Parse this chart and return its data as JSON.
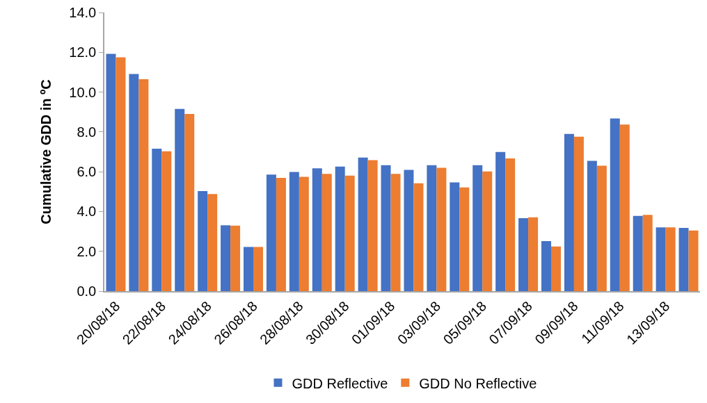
{
  "chart_data": {
    "type": "bar",
    "ylabel": "Cumulative GDD in ºC",
    "categories": [
      "20/08/18",
      null,
      "22/08/18",
      null,
      "24/08/18",
      null,
      "26/08/18",
      null,
      "28/08/18",
      null,
      "30/08/18",
      null,
      "01/09/18",
      null,
      "03/09/18",
      null,
      "05/09/18",
      null,
      "07/09/18",
      null,
      "09/09/18",
      null,
      "11/09/18",
      null,
      "13/09/18",
      null
    ],
    "series": [
      {
        "name": "GDD Reflective",
        "color": "#4472c4",
        "values": [
          11.92,
          10.91,
          7.16,
          9.16,
          5.03,
          3.31,
          2.22,
          5.86,
          5.99,
          6.17,
          6.26,
          6.71,
          6.33,
          6.09,
          6.33,
          5.46,
          6.33,
          6.99,
          3.67,
          2.51,
          7.9,
          6.55,
          8.68,
          3.78,
          3.2,
          3.18
        ]
      },
      {
        "name": "GDD No Reflective",
        "color": "#ed7d31",
        "values": [
          11.75,
          10.65,
          7.03,
          8.9,
          4.88,
          3.29,
          2.22,
          5.69,
          5.74,
          5.89,
          5.8,
          6.58,
          5.89,
          5.42,
          6.2,
          5.21,
          6.01,
          6.67,
          3.71,
          2.24,
          7.76,
          6.3,
          8.37,
          3.83,
          3.2,
          3.05
        ]
      }
    ],
    "ylim": [
      0,
      14
    ],
    "yticks": [
      {
        "value": 0,
        "label": "0.0"
      },
      {
        "value": 2,
        "label": "2.0"
      },
      {
        "value": 4,
        "label": "4.0"
      },
      {
        "value": 6,
        "label": "6.0"
      },
      {
        "value": 8,
        "label": "8.0"
      },
      {
        "value": 10,
        "label": "10.0"
      },
      {
        "value": 12,
        "label": "12.0"
      },
      {
        "value": 14,
        "label": "14.0"
      }
    ],
    "grid": false,
    "legend": "bottom"
  }
}
